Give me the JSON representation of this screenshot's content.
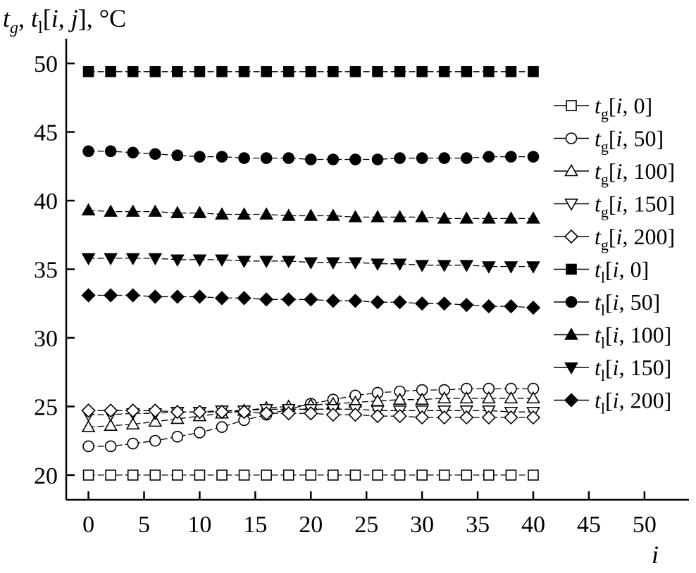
{
  "chart_data": {
    "type": "line",
    "ylabel": {
      "t": "t",
      "sub_g": "g",
      "sep": ", ",
      "t2": "t",
      "sub_l": "l",
      "idx_open": "[",
      "idx_i": "i",
      "idx_comma": ", ",
      "idx_j": "j",
      "idx_close": "]",
      "unit": ", °C"
    },
    "xlabel": "i",
    "xlim": [
      -2,
      54
    ],
    "ylim": [
      18.2,
      51.8
    ],
    "x_ticks": [
      "0",
      "5",
      "10",
      "15",
      "20",
      "25",
      "30",
      "35",
      "40",
      "45",
      "50"
    ],
    "y_ticks": [
      "20",
      "25",
      "30",
      "35",
      "40",
      "45",
      "50"
    ],
    "x": [
      0,
      2,
      4,
      6,
      8,
      10,
      12,
      14,
      16,
      18,
      20,
      22,
      24,
      26,
      28,
      30,
      32,
      34,
      36,
      38,
      40
    ],
    "series": [
      {
        "name": "tg[i, 0]",
        "base": "t",
        "sub": "g",
        "idx": "0",
        "marker": "square",
        "fill": "open",
        "values": [
          20.0,
          20.0,
          20.0,
          20.0,
          20.0,
          20.0,
          20.0,
          20.0,
          20.0,
          20.0,
          20.0,
          20.0,
          20.0,
          20.0,
          20.0,
          20.0,
          20.0,
          20.0,
          20.0,
          20.0,
          20.0
        ]
      },
      {
        "name": "tg[i, 50]",
        "base": "t",
        "sub": "g",
        "idx": "50",
        "marker": "circle",
        "fill": "open",
        "values": [
          22.1,
          22.1,
          22.3,
          22.5,
          22.8,
          23.1,
          23.5,
          24.0,
          24.4,
          24.8,
          25.2,
          25.5,
          25.8,
          26.0,
          26.1,
          26.2,
          26.2,
          26.3,
          26.3,
          26.3,
          26.3
        ]
      },
      {
        "name": "tg[i, 100]",
        "base": "t",
        "sub": "g",
        "idx": "100",
        "marker": "triangle-up",
        "fill": "open",
        "values": [
          23.5,
          23.6,
          23.7,
          23.9,
          24.1,
          24.3,
          24.5,
          24.7,
          24.9,
          25.0,
          25.1,
          25.2,
          25.3,
          25.4,
          25.5,
          25.5,
          25.6,
          25.6,
          25.6,
          25.6,
          25.6
        ]
      },
      {
        "name": "tg[i, 150]",
        "base": "t",
        "sub": "g",
        "idx": "150",
        "marker": "triangle-down",
        "fill": "open",
        "values": [
          24.4,
          24.4,
          24.5,
          24.5,
          24.6,
          24.6,
          24.7,
          24.7,
          24.8,
          24.8,
          24.8,
          24.8,
          24.8,
          24.7,
          24.7,
          24.7,
          24.7,
          24.7,
          24.7,
          24.6,
          24.6
        ]
      },
      {
        "name": "tg[i, 200]",
        "base": "t",
        "sub": "g",
        "idx": "200",
        "marker": "diamond",
        "fill": "open",
        "values": [
          24.7,
          24.7,
          24.7,
          24.7,
          24.6,
          24.6,
          24.6,
          24.6,
          24.5,
          24.5,
          24.5,
          24.4,
          24.4,
          24.3,
          24.3,
          24.2,
          24.2,
          24.2,
          24.2,
          24.2,
          24.2
        ]
      },
      {
        "name": "tl[i, 0]",
        "base": "t",
        "sub": "l",
        "idx": "0",
        "marker": "square",
        "fill": "filled",
        "values": [
          49.4,
          49.4,
          49.4,
          49.4,
          49.4,
          49.4,
          49.4,
          49.4,
          49.4,
          49.4,
          49.4,
          49.4,
          49.4,
          49.4,
          49.4,
          49.4,
          49.4,
          49.4,
          49.4,
          49.4,
          49.4
        ]
      },
      {
        "name": "tl[i, 50]",
        "base": "t",
        "sub": "l",
        "idx": "50",
        "marker": "circle",
        "fill": "filled",
        "values": [
          43.6,
          43.6,
          43.5,
          43.4,
          43.3,
          43.2,
          43.2,
          43.1,
          43.1,
          43.1,
          43.0,
          43.0,
          43.0,
          43.0,
          43.1,
          43.1,
          43.1,
          43.1,
          43.2,
          43.2,
          43.2
        ]
      },
      {
        "name": "tl[i, 100]",
        "base": "t",
        "sub": "l",
        "idx": "100",
        "marker": "triangle-up",
        "fill": "filled",
        "values": [
          39.3,
          39.2,
          39.2,
          39.2,
          39.1,
          39.1,
          39.0,
          39.0,
          39.0,
          38.9,
          38.9,
          38.9,
          38.8,
          38.8,
          38.8,
          38.8,
          38.7,
          38.7,
          38.7,
          38.7,
          38.7
        ]
      },
      {
        "name": "tl[i, 150]",
        "base": "t",
        "sub": "l",
        "idx": "150",
        "marker": "triangle-down",
        "fill": "filled",
        "values": [
          35.8,
          35.8,
          35.8,
          35.8,
          35.7,
          35.7,
          35.7,
          35.6,
          35.6,
          35.6,
          35.5,
          35.5,
          35.5,
          35.4,
          35.4,
          35.3,
          35.3,
          35.3,
          35.2,
          35.2,
          35.2
        ]
      },
      {
        "name": "tl[i, 200]",
        "base": "t",
        "sub": "l",
        "idx": "200",
        "marker": "diamond",
        "fill": "filled",
        "values": [
          33.1,
          33.1,
          33.1,
          33.0,
          33.0,
          33.0,
          32.9,
          32.9,
          32.8,
          32.8,
          32.8,
          32.7,
          32.7,
          32.6,
          32.6,
          32.5,
          32.5,
          32.4,
          32.3,
          32.3,
          32.2
        ]
      }
    ]
  }
}
